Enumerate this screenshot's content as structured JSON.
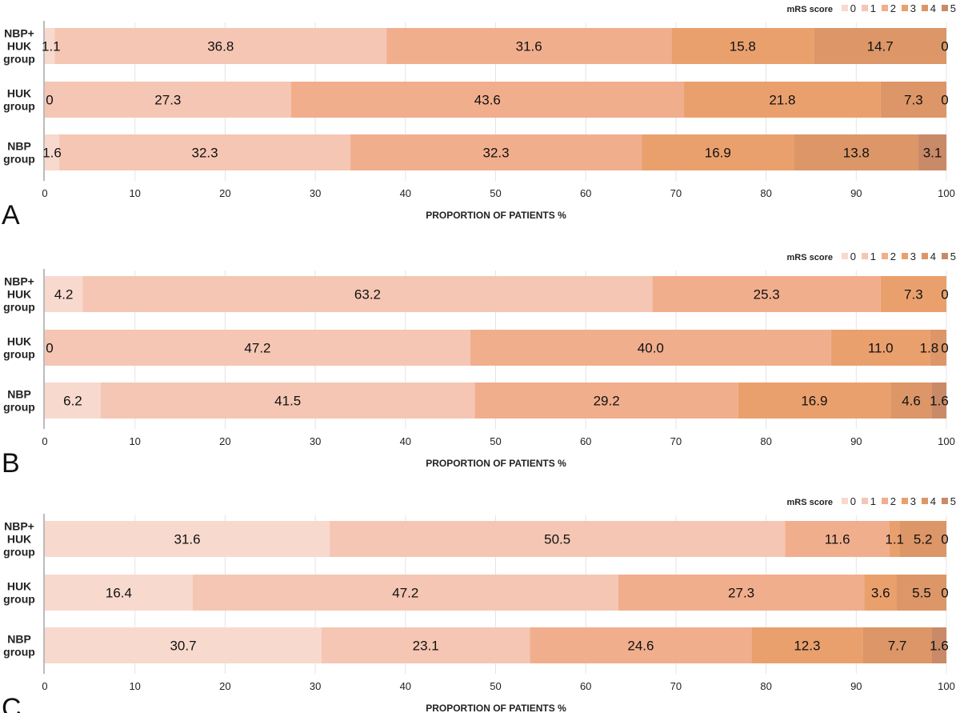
{
  "chart_data": [
    {
      "type": "bar",
      "orientation": "horizontal",
      "stacked": true,
      "panel_label": "A",
      "xlabel": "PROPORTION OF PATIENTS %",
      "xlim": [
        0,
        100
      ],
      "xticks": [
        0,
        10,
        20,
        30,
        40,
        50,
        60,
        70,
        80,
        90,
        100
      ],
      "grid": true,
      "legend_title": "mRS score",
      "legend_position": "top-right",
      "categories": [
        "NBP+ HUK group",
        "HUK group",
        "NBP group"
      ],
      "series": [
        {
          "name": "0",
          "color": "#f8d9ce",
          "values": [
            1.1,
            0,
            1.6
          ]
        },
        {
          "name": "1",
          "color": "#f5c6b3",
          "values": [
            36.8,
            27.3,
            32.3
          ]
        },
        {
          "name": "2",
          "color": "#f1ae8d",
          "values": [
            31.6,
            43.6,
            32.3
          ]
        },
        {
          "name": "3",
          "color": "#eaa06d",
          "values": [
            15.8,
            21.8,
            16.9
          ]
        },
        {
          "name": "4",
          "color": "#dc9667",
          "values": [
            14.7,
            7.3,
            13.8
          ]
        },
        {
          "name": "5",
          "color": "#c98a67",
          "values": [
            0,
            0,
            3.1
          ]
        }
      ]
    },
    {
      "type": "bar",
      "orientation": "horizontal",
      "stacked": true,
      "panel_label": "B",
      "xlabel": "PROPORTION OF PATIENTS %",
      "xlim": [
        0,
        100
      ],
      "xticks": [
        0,
        10,
        20,
        30,
        40,
        50,
        60,
        70,
        80,
        90,
        100
      ],
      "grid": true,
      "legend_title": "mRS score",
      "legend_position": "top-right",
      "categories": [
        "NBP+ HUK group",
        "HUK group",
        "NBP group"
      ],
      "series": [
        {
          "name": "0",
          "color": "#f8d9ce",
          "values": [
            4.2,
            0,
            6.2
          ]
        },
        {
          "name": "1",
          "color": "#f5c6b3",
          "values": [
            63.2,
            47.2,
            41.5
          ]
        },
        {
          "name": "2",
          "color": "#f1ae8d",
          "values": [
            25.3,
            40.0,
            29.2
          ]
        },
        {
          "name": "3",
          "color": "#eaa06d",
          "values": [
            7.3,
            11.0,
            16.9
          ]
        },
        {
          "name": "4",
          "color": "#dc9667",
          "values": [
            0,
            1.8,
            4.6
          ]
        },
        {
          "name": "5",
          "color": "#c98a67",
          "values": [
            0,
            0,
            1.6
          ]
        }
      ]
    },
    {
      "type": "bar",
      "orientation": "horizontal",
      "stacked": true,
      "panel_label": "C",
      "xlabel": "PROPORTION OF PATIENTS %",
      "xlim": [
        0,
        100
      ],
      "xticks": [
        0,
        10,
        20,
        30,
        40,
        50,
        60,
        70,
        80,
        90,
        100
      ],
      "grid": true,
      "legend_title": "mRS score",
      "legend_position": "top-right",
      "categories": [
        "NBP+ HUK group",
        "HUK group",
        "NBP group"
      ],
      "series": [
        {
          "name": "0",
          "color": "#f8d9ce",
          "values": [
            31.6,
            16.4,
            30.7
          ]
        },
        {
          "name": "1",
          "color": "#f5c6b3",
          "values": [
            50.5,
            47.2,
            23.1
          ]
        },
        {
          "name": "2",
          "color": "#f1ae8d",
          "values": [
            11.6,
            27.3,
            24.6
          ]
        },
        {
          "name": "3",
          "color": "#eaa06d",
          "values": [
            1.1,
            3.6,
            12.3
          ]
        },
        {
          "name": "4",
          "color": "#dc9667",
          "values": [
            5.2,
            5.5,
            7.7
          ]
        },
        {
          "name": "5",
          "color": "#c98a67",
          "values": [
            0,
            0,
            1.6
          ]
        }
      ]
    }
  ]
}
